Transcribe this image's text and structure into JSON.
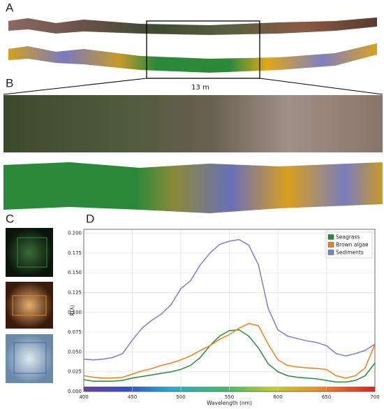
{
  "panels": {
    "a": "A",
    "b": "B",
    "c": "C",
    "d": "D",
    "scale": "13 m"
  },
  "chart_data": {
    "type": "line",
    "x_label": "Wavelength (nm)",
    "y_label": "R(λ)",
    "x": [
      400,
      410,
      420,
      430,
      440,
      450,
      460,
      470,
      480,
      490,
      500,
      510,
      520,
      530,
      540,
      550,
      560,
      570,
      580,
      590,
      600,
      610,
      620,
      630,
      640,
      650,
      660,
      670,
      680,
      690,
      700
    ],
    "series": [
      {
        "name": "Seagrass",
        "color": "#2a8a3a",
        "values": [
          0.015,
          0.013,
          0.013,
          0.013,
          0.014,
          0.017,
          0.019,
          0.021,
          0.023,
          0.025,
          0.028,
          0.033,
          0.043,
          0.058,
          0.07,
          0.077,
          0.078,
          0.07,
          0.055,
          0.035,
          0.025,
          0.02,
          0.018,
          0.017,
          0.016,
          0.014,
          0.012,
          0.012,
          0.014,
          0.02,
          0.036
        ]
      },
      {
        "name": "Brown algae",
        "color": "#f07f1a",
        "values": [
          0.02,
          0.018,
          0.017,
          0.017,
          0.018,
          0.022,
          0.026,
          0.029,
          0.033,
          0.036,
          0.04,
          0.045,
          0.052,
          0.058,
          0.066,
          0.072,
          0.08,
          0.086,
          0.083,
          0.06,
          0.04,
          0.033,
          0.031,
          0.03,
          0.029,
          0.028,
          0.02,
          0.017,
          0.02,
          0.03,
          0.06
        ]
      },
      {
        "name": "Sediments",
        "color": "#7b7fc7",
        "values": [
          0.041,
          0.04,
          0.041,
          0.043,
          0.048,
          0.065,
          0.08,
          0.09,
          0.098,
          0.11,
          0.13,
          0.14,
          0.16,
          0.175,
          0.186,
          0.19,
          0.192,
          0.185,
          0.16,
          0.105,
          0.078,
          0.07,
          0.067,
          0.064,
          0.062,
          0.058,
          0.048,
          0.045,
          0.048,
          0.052,
          0.06
        ]
      }
    ],
    "xlim": [
      400,
      700
    ],
    "xticks": [
      400,
      450,
      500,
      550,
      600,
      650,
      700
    ],
    "ylim": [
      0,
      0.205
    ],
    "yticks": [
      {
        "value": 0,
        "label": "0.000"
      },
      0.025,
      {
        "value": 0.05,
        "label": "0.050"
      },
      0.075,
      {
        "value": 0.1,
        "label": "0.100"
      },
      0.125,
      {
        "value": 0.15,
        "label": "0.150"
      },
      0.175,
      {
        "value": 0.2,
        "label": "0.200"
      }
    ],
    "grid": true,
    "legend": "upper right"
  }
}
